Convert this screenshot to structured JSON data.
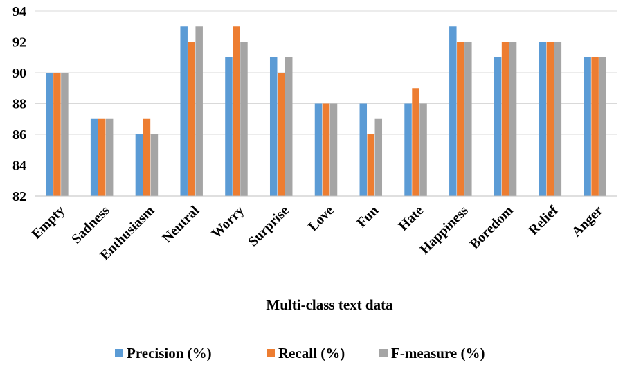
{
  "chart_data": {
    "type": "bar",
    "title": "",
    "xlabel": "Multi-class text data",
    "ylabel": "",
    "ylim": [
      82,
      94
    ],
    "yticks": [
      82,
      84,
      86,
      88,
      90,
      92,
      94
    ],
    "categories": [
      "Empty",
      "Sadness",
      "Enthusiasm",
      "Neutral",
      "Worry",
      "Surprise",
      "Love",
      "Fun",
      "Hate",
      "Happiness",
      "Boredom",
      "Relief",
      "Anger"
    ],
    "series": [
      {
        "name": "Precision (%)",
        "color": "#5b9bd5",
        "values": [
          90,
          87,
          86,
          93,
          91,
          91,
          88,
          88,
          88,
          93,
          91,
          92,
          91
        ]
      },
      {
        "name": "Recall (%)",
        "color": "#ed7d31",
        "values": [
          90,
          87,
          87,
          92,
          93,
          90,
          88,
          86,
          89,
          92,
          92,
          92,
          91
        ]
      },
      {
        "name": "F-measure (%)",
        "color": "#a5a5a5",
        "values": [
          90,
          87,
          86,
          93,
          92,
          91,
          88,
          87,
          88,
          92,
          92,
          92,
          91
        ]
      }
    ],
    "grid": true,
    "legend_position": "bottom"
  }
}
